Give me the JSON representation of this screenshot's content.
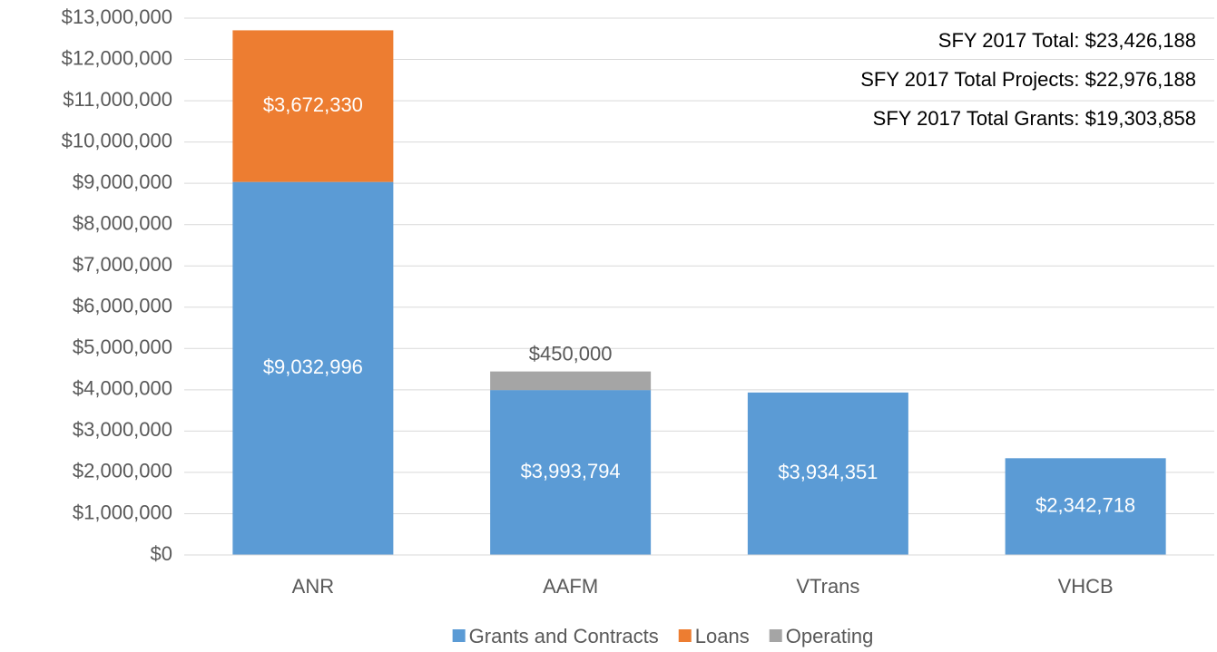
{
  "chart_data": {
    "type": "stacked_bar",
    "categories": [
      "ANR",
      "AAFM",
      "VTrans",
      "VHCB"
    ],
    "series": [
      {
        "name": "Grants and Contracts",
        "color": "#5b9bd5",
        "values": [
          9032996,
          3993794,
          3934351,
          2342718
        ],
        "value_labels": [
          "$9,032,996",
          "$3,993,794",
          "$3,934,351",
          "$2,342,718"
        ]
      },
      {
        "name": "Loans",
        "color": "#ed7d31",
        "values": [
          3672330,
          null,
          null,
          null
        ],
        "value_labels": [
          "$3,672,330",
          null,
          null,
          null
        ]
      },
      {
        "name": "Operating",
        "color": "#a5a5a5",
        "values": [
          null,
          450000,
          null,
          null
        ],
        "value_labels": [
          null,
          "$450,000",
          null,
          null
        ]
      }
    ],
    "annotations": [
      "SFY 2017 Total: $23,426,188",
      "SFY 2017 Total Projects: $22,976,188",
      "SFY 2017 Total Grants: $19,303,858"
    ],
    "ylim": [
      0,
      13000000
    ],
    "yticks": [
      {
        "value": 0,
        "label": "$0"
      },
      {
        "value": 1000000,
        "label": "$1,000,000"
      },
      {
        "value": 2000000,
        "label": "$2,000,000"
      },
      {
        "value": 3000000,
        "label": "$3,000,000"
      },
      {
        "value": 4000000,
        "label": "$4,000,000"
      },
      {
        "value": 5000000,
        "label": "$5,000,000"
      },
      {
        "value": 6000000,
        "label": "$6,000,000"
      },
      {
        "value": 7000000,
        "label": "$7,000,000"
      },
      {
        "value": 8000000,
        "label": "$8,000,000"
      },
      {
        "value": 9000000,
        "label": "$9,000,000"
      },
      {
        "value": 10000000,
        "label": "$10,000,000"
      },
      {
        "value": 11000000,
        "label": "$11,000,000"
      },
      {
        "value": 12000000,
        "label": "$12,000,000"
      },
      {
        "value": 13000000,
        "label": "$13,000,000"
      }
    ],
    "grid": true,
    "legend": "bottom"
  }
}
